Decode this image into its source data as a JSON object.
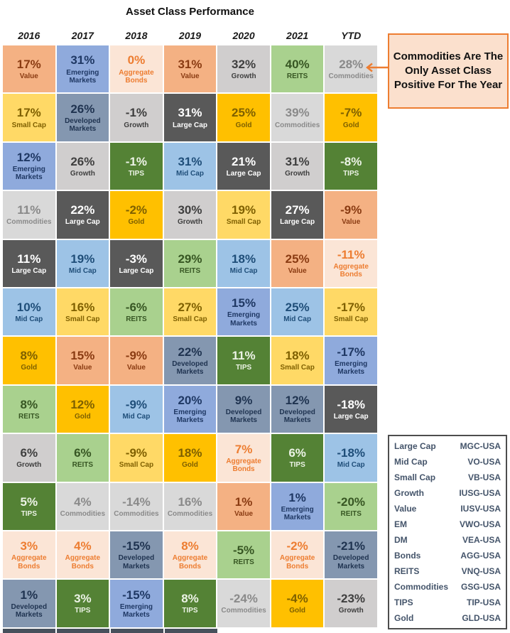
{
  "title": "Asset Class Performance",
  "annotation": {
    "text": "Commodities Are The Only Asset Class Positive For The Year",
    "border_color": "#ED7D31",
    "background_color": "#FBE0CD",
    "arrow_color": "#ED7D31"
  },
  "asset_classes": {
    "value": {
      "label": "Value",
      "bg": "#F4B183",
      "fg": "#8A3B12"
    },
    "smallcap": {
      "label": "Small Cap",
      "bg": "#FFD966",
      "fg": "#7F6000"
    },
    "midcap": {
      "label": "Mid Cap",
      "bg": "#9DC3E6",
      "fg": "#1F4E79"
    },
    "largecap": {
      "label": "Large Cap",
      "bg": "#595959",
      "fg": "#FFFFFF"
    },
    "growth": {
      "label": "Growth",
      "bg": "#D0CECE",
      "fg": "#3F3F3F"
    },
    "em": {
      "label": "Emerging Markets",
      "bg": "#8FAADC",
      "fg": "#1F3864"
    },
    "dm": {
      "label": "Developed Markets",
      "bg": "#8497B0",
      "fg": "#1F3350"
    },
    "gold": {
      "label": "Gold",
      "bg": "#FFC000",
      "fg": "#7E6000"
    },
    "reits": {
      "label": "REITS",
      "bg": "#A9D18E",
      "fg": "#375623"
    },
    "tips": {
      "label": "TIPS",
      "bg": "#548235",
      "fg": "#ECF3E6"
    },
    "commodities": {
      "label": "Commodities",
      "bg": "#D9D9D9",
      "fg": "#8A8A8A"
    },
    "aggbonds": {
      "label": "Aggregate Bonds",
      "bg": "#FBE5D6",
      "fg": "#ED7D31"
    }
  },
  "chart_data": {
    "type": "table",
    "title": "Asset Class Performance",
    "columns": [
      "2016",
      "2017",
      "2018",
      "2019",
      "2020",
      "2021",
      "YTD"
    ],
    "unit": "percent",
    "rows": [
      [
        {
          "value": 17,
          "class": "value"
        },
        {
          "value": 31,
          "class": "em"
        },
        {
          "value": 0,
          "class": "aggbonds"
        },
        {
          "value": 31,
          "class": "value"
        },
        {
          "value": 32,
          "class": "growth"
        },
        {
          "value": 40,
          "class": "reits"
        },
        {
          "value": 28,
          "class": "commodities"
        }
      ],
      [
        {
          "value": 17,
          "class": "smallcap"
        },
        {
          "value": 26,
          "class": "dm"
        },
        {
          "value": -1,
          "class": "growth"
        },
        {
          "value": 31,
          "class": "largecap"
        },
        {
          "value": 25,
          "class": "gold"
        },
        {
          "value": 39,
          "class": "commodities"
        },
        {
          "value": -7,
          "class": "gold"
        }
      ],
      [
        {
          "value": 12,
          "class": "em"
        },
        {
          "value": 26,
          "class": "growth"
        },
        {
          "value": -1,
          "class": "tips"
        },
        {
          "value": 31,
          "class": "midcap"
        },
        {
          "value": 21,
          "class": "largecap"
        },
        {
          "value": 31,
          "class": "growth"
        },
        {
          "value": -8,
          "class": "tips"
        }
      ],
      [
        {
          "value": 11,
          "class": "commodities"
        },
        {
          "value": 22,
          "class": "largecap"
        },
        {
          "value": -2,
          "class": "gold"
        },
        {
          "value": 30,
          "class": "growth"
        },
        {
          "value": 19,
          "class": "smallcap"
        },
        {
          "value": 27,
          "class": "largecap"
        },
        {
          "value": -9,
          "class": "value"
        }
      ],
      [
        {
          "value": 11,
          "class": "largecap"
        },
        {
          "value": 19,
          "class": "midcap"
        },
        {
          "value": -3,
          "class": "largecap"
        },
        {
          "value": 29,
          "class": "reits"
        },
        {
          "value": 18,
          "class": "midcap"
        },
        {
          "value": 25,
          "class": "value"
        },
        {
          "value": -11,
          "class": "aggbonds"
        }
      ],
      [
        {
          "value": 10,
          "class": "midcap"
        },
        {
          "value": 16,
          "class": "smallcap"
        },
        {
          "value": -6,
          "class": "reits"
        },
        {
          "value": 27,
          "class": "smallcap"
        },
        {
          "value": 15,
          "class": "em"
        },
        {
          "value": 25,
          "class": "midcap"
        },
        {
          "value": -17,
          "class": "smallcap"
        }
      ],
      [
        {
          "value": 8,
          "class": "gold"
        },
        {
          "value": 15,
          "class": "value"
        },
        {
          "value": -9,
          "class": "value"
        },
        {
          "value": 22,
          "class": "dm"
        },
        {
          "value": 11,
          "class": "tips"
        },
        {
          "value": 18,
          "class": "smallcap"
        },
        {
          "value": -17,
          "class": "em"
        }
      ],
      [
        {
          "value": 8,
          "class": "reits"
        },
        {
          "value": 12,
          "class": "gold"
        },
        {
          "value": -9,
          "class": "midcap"
        },
        {
          "value": 20,
          "class": "em"
        },
        {
          "value": 9,
          "class": "dm"
        },
        {
          "value": 12,
          "class": "dm"
        },
        {
          "value": -18,
          "class": "largecap"
        }
      ],
      [
        {
          "value": 6,
          "class": "growth"
        },
        {
          "value": 6,
          "class": "reits"
        },
        {
          "value": -9,
          "class": "smallcap"
        },
        {
          "value": 18,
          "class": "gold"
        },
        {
          "value": 7,
          "class": "aggbonds"
        },
        {
          "value": 6,
          "class": "tips"
        },
        {
          "value": -18,
          "class": "midcap"
        }
      ],
      [
        {
          "value": 5,
          "class": "tips"
        },
        {
          "value": 4,
          "class": "commodities"
        },
        {
          "value": -14,
          "class": "commodities"
        },
        {
          "value": 16,
          "class": "commodities"
        },
        {
          "value": 1,
          "class": "value"
        },
        {
          "value": 1,
          "class": "em"
        },
        {
          "value": -20,
          "class": "reits"
        }
      ],
      [
        {
          "value": 3,
          "class": "aggbonds"
        },
        {
          "value": 4,
          "class": "aggbonds"
        },
        {
          "value": -15,
          "class": "dm"
        },
        {
          "value": 8,
          "class": "aggbonds"
        },
        {
          "value": -5,
          "class": "reits"
        },
        {
          "value": -2,
          "class": "aggbonds"
        },
        {
          "value": -21,
          "class": "dm"
        }
      ],
      [
        {
          "value": 1,
          "class": "dm"
        },
        {
          "value": 3,
          "class": "tips"
        },
        {
          "value": -15,
          "class": "em"
        },
        {
          "value": 8,
          "class": "tips"
        },
        {
          "value": -24,
          "class": "commodities"
        },
        {
          "value": -4,
          "class": "gold"
        },
        {
          "value": -23,
          "class": "growth"
        }
      ]
    ]
  },
  "cutoff_strip": {
    "columns": 4,
    "color": "#47505C"
  },
  "legend": {
    "items": [
      {
        "label": "Large Cap",
        "ticker": "MGC-USA"
      },
      {
        "label": "Mid Cap",
        "ticker": "VO-USA"
      },
      {
        "label": "Small Cap",
        "ticker": "VB-USA"
      },
      {
        "label": "Growth",
        "ticker": "IUSG-USA"
      },
      {
        "label": "Value",
        "ticker": "IUSV-USA"
      },
      {
        "label": "EM",
        "ticker": "VWO-USA"
      },
      {
        "label": "DM",
        "ticker": "VEA-USA"
      },
      {
        "label": "Bonds",
        "ticker": "AGG-USA"
      },
      {
        "label": "REITS",
        "ticker": "VNQ-USA"
      },
      {
        "label": "Commodities",
        "ticker": "GSG-USA"
      },
      {
        "label": "TIPS",
        "ticker": "TIP-USA"
      },
      {
        "label": "Gold",
        "ticker": "GLD-USA"
      }
    ]
  }
}
